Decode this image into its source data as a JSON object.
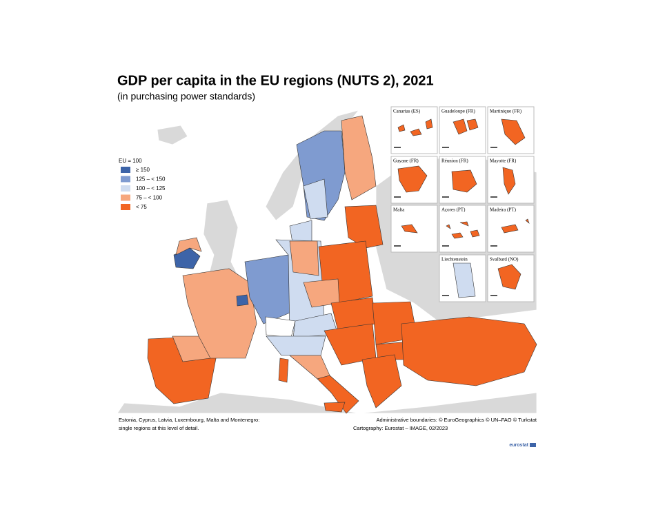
{
  "header": {
    "title": "GDP per capita in the EU regions (NUTS 2), 2021",
    "subtitle": "(in purchasing power standards)"
  },
  "legend": {
    "title": "EU = 100",
    "items": [
      {
        "label": "≥ 150",
        "color": "#3d64a8"
      },
      {
        "label": "125 – < 150",
        "color": "#7f9bd0"
      },
      {
        "label": "100 – < 125",
        "color": "#cfdcf0"
      },
      {
        "label": "75 – < 100",
        "color": "#f6a77e"
      },
      {
        "label": "< 75",
        "color": "#f26522"
      }
    ]
  },
  "insets": [
    "Canarias (ES)",
    "Guadeloupe (FR)",
    "Martinique (FR)",
    "Guyane (FR)",
    "Réunion (FR)",
    "Mayotte (FR)",
    "Malta",
    "Açores (PT)",
    "Madeira (PT)",
    "Liechtenstein",
    "Svalbard (NO)"
  ],
  "notes": {
    "left": [
      "Estonia, Cyprus, Latvia, Luxembourg, Malta and Montenegro:",
      "single regions at this level of detail."
    ],
    "right": [
      "Administrative boundaries: © EuroGeographics © UN–FAO © Turkstat",
      "Cartography: Eurostat – IMAGE, 02/2023"
    ]
  },
  "logo": "eurostat"
}
